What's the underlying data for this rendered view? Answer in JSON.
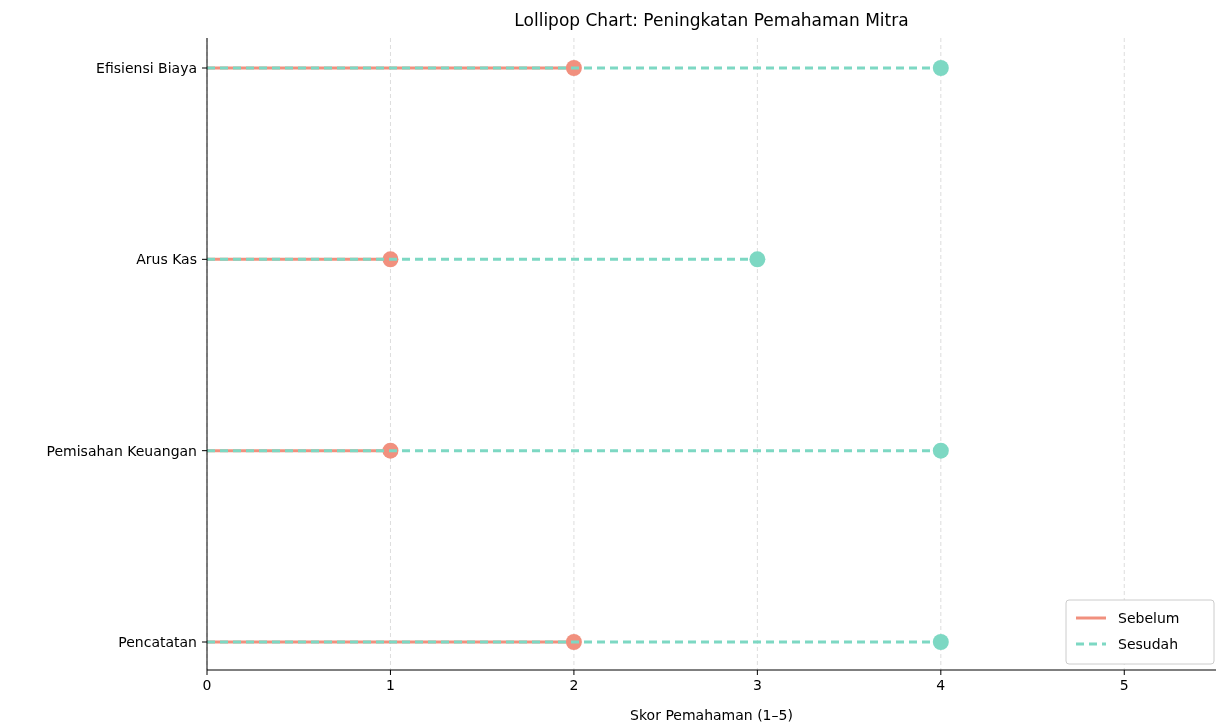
{
  "chart_data": {
    "type": "lollipop",
    "orientation": "horizontal",
    "title": "Lollipop Chart: Peningkatan Pemahaman Mitra",
    "xlabel": "Skor Pemahaman (1–5)",
    "categories": [
      "Efisiensi Biaya",
      "Arus Kas",
      "Pemisahan Keuangan",
      "Pencatatan"
    ],
    "series": [
      {
        "name": "Sebelum",
        "color": "#f1907e",
        "line_style": "solid",
        "values": [
          2,
          1,
          1,
          2
        ]
      },
      {
        "name": "Sesudah",
        "color": "#7dd8c3",
        "line_style": "dashed",
        "values": [
          4,
          3,
          4,
          4
        ]
      }
    ],
    "xlim": [
      0,
      5.5
    ],
    "xticks": [
      0,
      1,
      2,
      3,
      4,
      5
    ],
    "grid": "x",
    "legend": "bottom right",
    "marker": "circle"
  }
}
